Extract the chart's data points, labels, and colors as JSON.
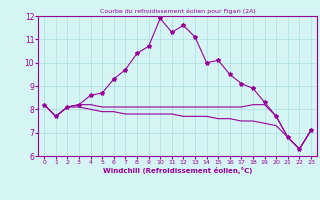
{
  "x": [
    0,
    1,
    2,
    3,
    4,
    5,
    6,
    7,
    8,
    9,
    10,
    11,
    12,
    13,
    14,
    15,
    16,
    17,
    18,
    19,
    20,
    21,
    22,
    23
  ],
  "line1": [
    8.2,
    7.7,
    8.1,
    8.2,
    8.6,
    8.7,
    9.3,
    9.7,
    10.4,
    10.7,
    11.9,
    11.3,
    11.6,
    11.1,
    10.0,
    10.1,
    9.5,
    9.1,
    8.9,
    8.3,
    7.7,
    6.8,
    6.3,
    7.1
  ],
  "line2": [
    8.2,
    7.7,
    8.1,
    8.2,
    8.2,
    8.1,
    8.1,
    8.1,
    8.1,
    8.1,
    8.1,
    8.1,
    8.1,
    8.1,
    8.1,
    8.1,
    8.1,
    8.1,
    8.2,
    8.2,
    7.7,
    6.8,
    6.3,
    7.1
  ],
  "line3": [
    8.2,
    7.7,
    8.1,
    8.1,
    8.0,
    7.9,
    7.9,
    7.8,
    7.8,
    7.8,
    7.8,
    7.8,
    7.7,
    7.7,
    7.7,
    7.6,
    7.6,
    7.5,
    7.5,
    7.4,
    7.3,
    6.8,
    6.3,
    7.1
  ],
  "line_color": "#990099",
  "bg_color": "#d5f5f5",
  "grid_color": "#aadddd",
  "title": "Courbe du refroidissement éolien pour Figari (2A)",
  "xlabel": "Windchill (Refroidissement éolien,°C)",
  "xlim": [
    -0.5,
    23.5
  ],
  "ylim": [
    6,
    12
  ],
  "yticks": [
    6,
    7,
    8,
    9,
    10,
    11,
    12
  ],
  "xticks": [
    0,
    1,
    2,
    3,
    4,
    5,
    6,
    7,
    8,
    9,
    10,
    11,
    12,
    13,
    14,
    15,
    16,
    17,
    18,
    19,
    20,
    21,
    22,
    23
  ],
  "xtick_labels": [
    "0",
    "1",
    "2",
    "3",
    "4",
    "5",
    "6",
    "7",
    "8",
    "9",
    "10",
    "11",
    "12",
    "13",
    "14",
    "15",
    "16",
    "17",
    "18",
    "19",
    "20",
    "21",
    "22",
    "23"
  ]
}
